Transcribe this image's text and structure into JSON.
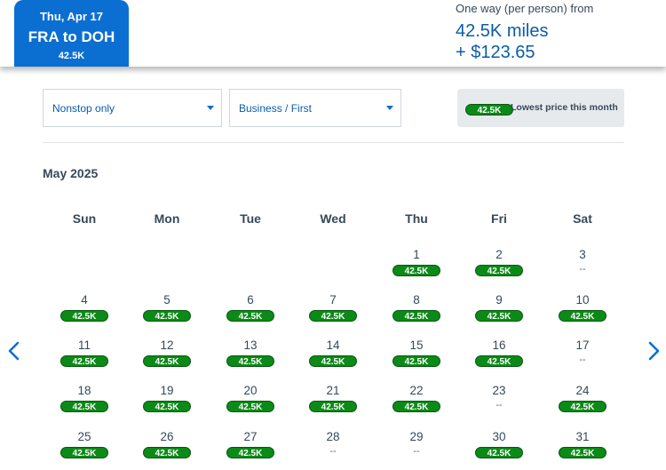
{
  "header": {
    "date": "Thu, Apr 17",
    "route": "FRA to DOH",
    "price": "42.5K",
    "fare_label": "One way (per person) from",
    "fare_miles": "42.5K miles",
    "fare_cash": "+ $123.65"
  },
  "filters": {
    "stops": "Nonstop only",
    "cabin": "Business / First"
  },
  "legend": {
    "pill": "42.5K",
    "text": "Lowest price this month"
  },
  "calendar": {
    "month": "May 2025",
    "weekdays": [
      "Sun",
      "Mon",
      "Tue",
      "Wed",
      "Thu",
      "Fri",
      "Sat"
    ],
    "weeks": [
      [
        null,
        null,
        null,
        null,
        {
          "day": "1",
          "price": "42.5K"
        },
        {
          "day": "2",
          "price": "42.5K"
        },
        {
          "day": "3",
          "price": "--"
        }
      ],
      [
        {
          "day": "4",
          "price": "42.5K"
        },
        {
          "day": "5",
          "price": "42.5K"
        },
        {
          "day": "6",
          "price": "42.5K"
        },
        {
          "day": "7",
          "price": "42.5K"
        },
        {
          "day": "8",
          "price": "42.5K"
        },
        {
          "day": "9",
          "price": "42.5K"
        },
        {
          "day": "10",
          "price": "42.5K"
        }
      ],
      [
        {
          "day": "11",
          "price": "42.5K"
        },
        {
          "day": "12",
          "price": "42.5K"
        },
        {
          "day": "13",
          "price": "42.5K"
        },
        {
          "day": "14",
          "price": "42.5K"
        },
        {
          "day": "15",
          "price": "42.5K"
        },
        {
          "day": "16",
          "price": "42.5K"
        },
        {
          "day": "17",
          "price": "--"
        }
      ],
      [
        {
          "day": "18",
          "price": "42.5K"
        },
        {
          "day": "19",
          "price": "42.5K"
        },
        {
          "day": "20",
          "price": "42.5K"
        },
        {
          "day": "21",
          "price": "42.5K"
        },
        {
          "day": "22",
          "price": "42.5K"
        },
        {
          "day": "23",
          "price": "--"
        },
        {
          "day": "24",
          "price": "42.5K"
        }
      ],
      [
        {
          "day": "25",
          "price": "42.5K"
        },
        {
          "day": "26",
          "price": "42.5K"
        },
        {
          "day": "27",
          "price": "42.5K"
        },
        {
          "day": "28",
          "price": "--"
        },
        {
          "day": "29",
          "price": "--"
        },
        {
          "day": "30",
          "price": "42.5K"
        },
        {
          "day": "31",
          "price": "42.5K"
        }
      ]
    ]
  },
  "nav": {
    "prev_icon": "chevron-left-icon",
    "next_icon": "chevron-right-icon"
  },
  "colors": {
    "brand_blue": "#0b6fd1",
    "lowest_price_green": "#0b8a17"
  }
}
